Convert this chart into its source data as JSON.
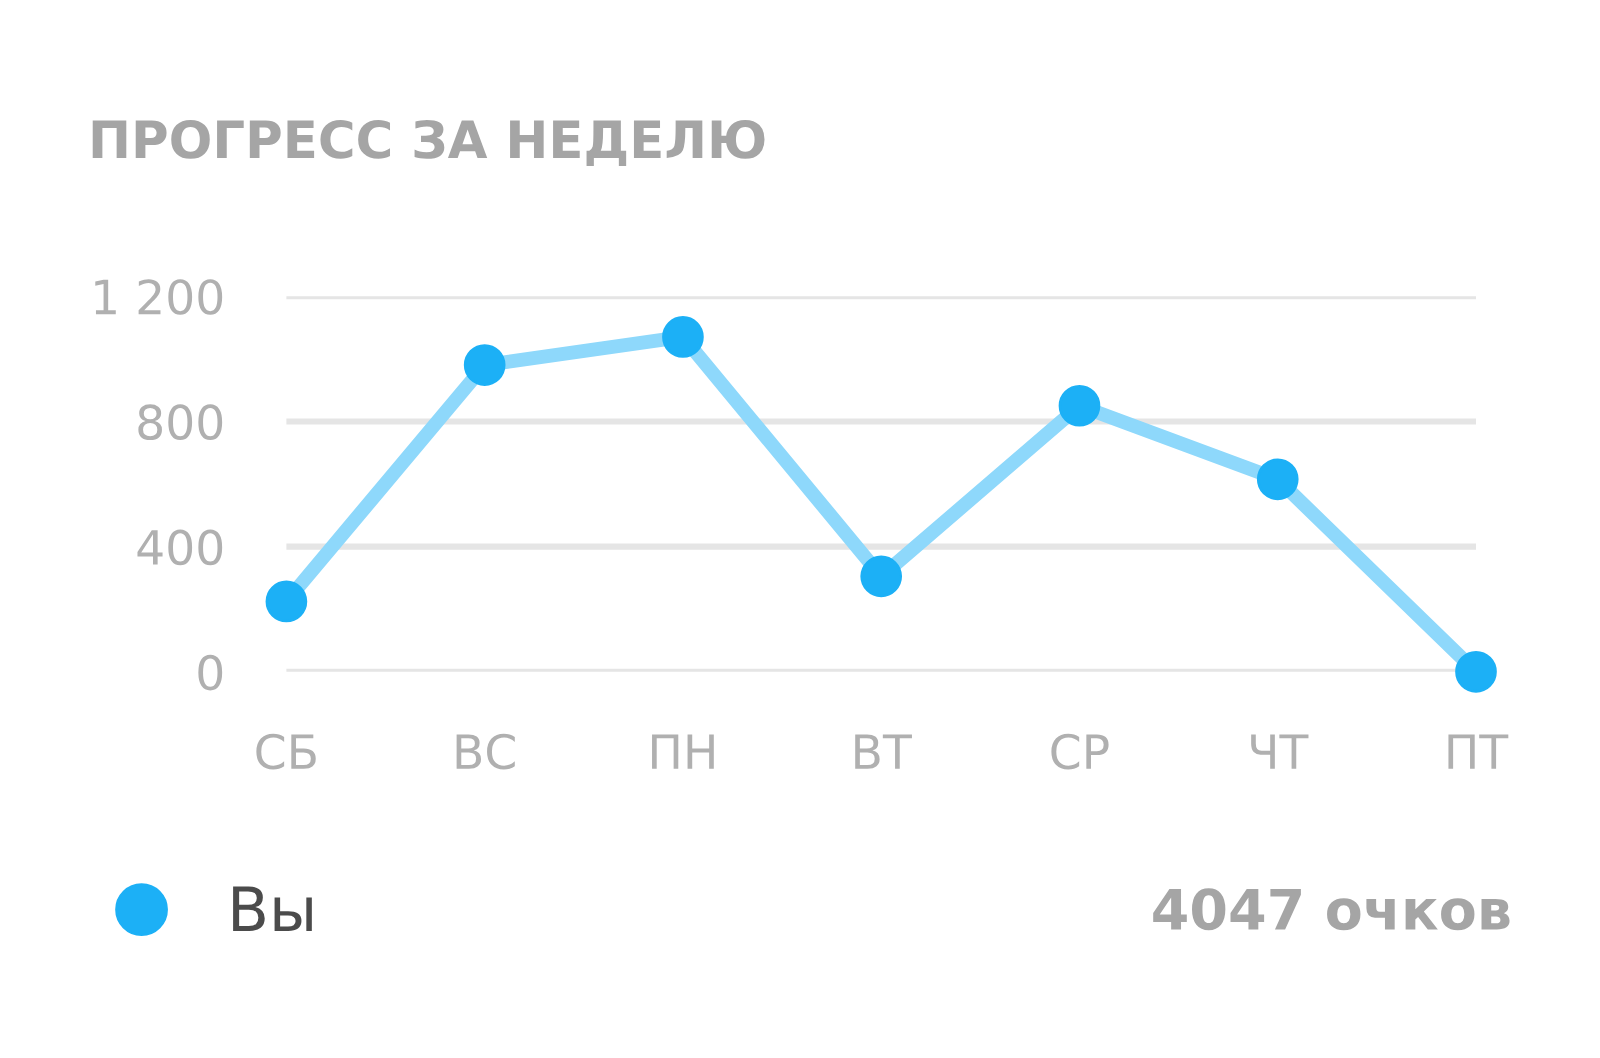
{
  "chart_data": {
    "type": "line",
    "title": "ПРОГРЕСС ЗА НЕДЕЛЮ",
    "categories": [
      "СБ",
      "ВС",
      "ПН",
      "ВТ",
      "СР",
      "ЧТ",
      "ПТ"
    ],
    "series": [
      {
        "name": "Вы",
        "color": "#1cb0f6",
        "values": [
          225,
          980,
          1070,
          305,
          850,
          615,
          0
        ]
      }
    ],
    "ylim": [
      0,
      1200
    ],
    "yticks": [
      0,
      400,
      800,
      {
        "value": 1200,
        "label": "1 200"
      }
    ],
    "grid": "y",
    "legend": "bottom left",
    "marker": "circle",
    "line_style": "solid",
    "annotations": [
      "4047 очков"
    ]
  }
}
